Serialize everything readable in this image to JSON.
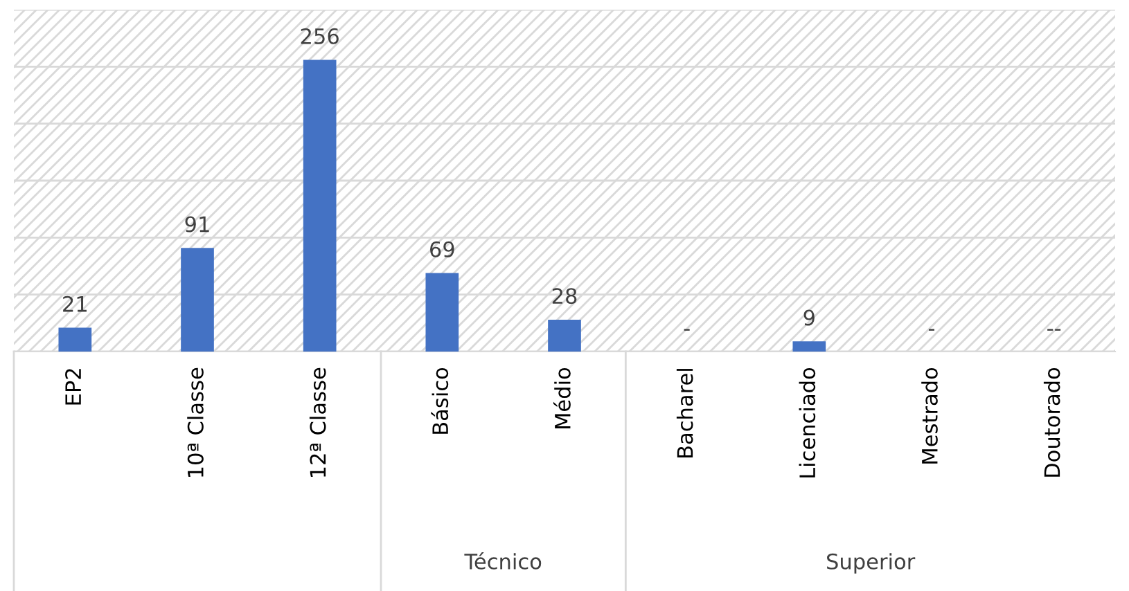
{
  "chart_data": {
    "type": "bar",
    "categories": [
      "EP2",
      "10ª Classe",
      "12ª Classe",
      "Básico",
      "Médio",
      "Bacharel",
      "Licenciado",
      "Mestrado",
      "Doutorado"
    ],
    "values": [
      21,
      91,
      256,
      69,
      28,
      null,
      9,
      null,
      null
    ],
    "value_labels": [
      "21",
      "91",
      "256",
      "69",
      "28",
      "-",
      "9",
      "-",
      "--"
    ],
    "color": "#4472c4",
    "ylim": [
      0,
      300
    ],
    "yticks": [
      {
        "value": 0,
        "label": null
      },
      {
        "value": 50,
        "label": null
      },
      {
        "value": 100,
        "label": null
      },
      {
        "value": 150,
        "label": null
      },
      {
        "value": 200,
        "label": null
      },
      {
        "value": 250,
        "label": null
      },
      {
        "value": 300,
        "label": null
      }
    ],
    "tick_labels": "x",
    "grid": "y",
    "annotations": [
      "Técnico",
      "Superior"
    ]
  }
}
